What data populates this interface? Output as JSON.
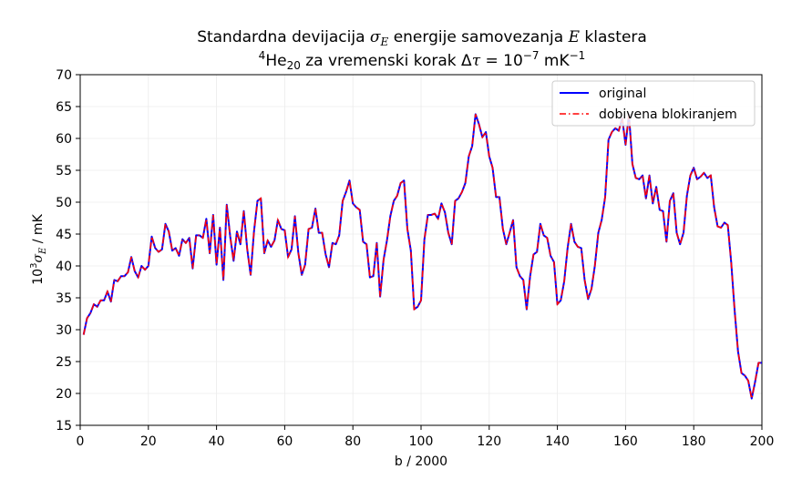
{
  "chart_data": {
    "type": "line",
    "title": {
      "line1": {
        "pre": "Standardna devijacija ",
        "sym": "σ",
        "sub": "E",
        "mid": " energije samovezanja ",
        "sym2": "E",
        "post": " klastera"
      },
      "line2": {
        "sup_pre": "4",
        "base": "He",
        "sub": "20",
        "mid": " za vremenski korak Δ",
        "tau": "τ",
        "eq": " = 10",
        "exp": "−7",
        "unit": " mK",
        "unit_exp": "−1"
      }
    },
    "xlabel": "b / 2000",
    "ylabel": {
      "pre": "10",
      "sup": "3",
      "sym": "σ",
      "sub": "E",
      "post": " / mK"
    },
    "xlim": [
      0,
      200
    ],
    "ylim": [
      15,
      70
    ],
    "xticks": [
      "0",
      "20",
      "40",
      "60",
      "80",
      "100",
      "120",
      "140",
      "160",
      "180",
      "200"
    ],
    "yticks": [
      "15",
      "20",
      "25",
      "30",
      "35",
      "40",
      "45",
      "50",
      "55",
      "60",
      "65",
      "70"
    ],
    "grid": true,
    "legend_position": "top-right",
    "colors": {
      "original": "#0000ff",
      "blocked": "#ff0000"
    },
    "series": [
      {
        "name": "original",
        "style": "solid"
      },
      {
        "name": "dobivena blokiranjem",
        "style": "dashdot"
      }
    ],
    "x": [
      1,
      2,
      3,
      4,
      5,
      6,
      7,
      8,
      9,
      10,
      11,
      12,
      13,
      14,
      15,
      16,
      17,
      18,
      19,
      20,
      21,
      22,
      23,
      24,
      25,
      26,
      27,
      28,
      29,
      30,
      31,
      32,
      33,
      34,
      35,
      36,
      37,
      38,
      39,
      40,
      41,
      42,
      43,
      44,
      45,
      46,
      47,
      48,
      49,
      50,
      51,
      52,
      53,
      54,
      55,
      56,
      57,
      58,
      59,
      60,
      61,
      62,
      63,
      64,
      65,
      66,
      67,
      68,
      69,
      70,
      71,
      72,
      73,
      74,
      75,
      76,
      77,
      78,
      79,
      80,
      81,
      82,
      83,
      84,
      85,
      86,
      87,
      88,
      89,
      90,
      91,
      92,
      93,
      94,
      95,
      96,
      97,
      98,
      99,
      100,
      101,
      102,
      103,
      104,
      105,
      106,
      107,
      108,
      109,
      110,
      111,
      112,
      113,
      114,
      115,
      116,
      117,
      118,
      119,
      120,
      121,
      122,
      123,
      124,
      125,
      126,
      127,
      128,
      129,
      130,
      131,
      132,
      133,
      134,
      135,
      136,
      137,
      138,
      139,
      140,
      141,
      142,
      143,
      144,
      145,
      146,
      147,
      148,
      149,
      150,
      151,
      152,
      153,
      154,
      155,
      156,
      157,
      158,
      159,
      160,
      161,
      162,
      163,
      164,
      165,
      166,
      167,
      168,
      169,
      170,
      171,
      172,
      173,
      174,
      175,
      176,
      177,
      178,
      179,
      180,
      181,
      182,
      183,
      184,
      185,
      186,
      187,
      188,
      189,
      190,
      191,
      192,
      193,
      194,
      195,
      196,
      197,
      198,
      199,
      200
    ],
    "values": [
      29.2,
      31.8,
      32.6,
      34.0,
      33.6,
      34.6,
      34.6,
      36.0,
      34.4,
      37.8,
      37.6,
      38.4,
      38.4,
      39.0,
      41.4,
      39.2,
      38.2,
      40.0,
      39.4,
      40.0,
      44.6,
      42.8,
      42.2,
      42.6,
      46.6,
      45.4,
      42.4,
      42.8,
      41.6,
      44.2,
      43.6,
      44.4,
      39.6,
      44.8,
      44.8,
      44.4,
      47.4,
      42.0,
      48.0,
      40.2,
      46.0,
      37.8,
      49.6,
      44.6,
      40.8,
      45.4,
      43.4,
      48.6,
      42.6,
      38.6,
      45.4,
      50.2,
      50.6,
      42.0,
      44.0,
      43.0,
      44.0,
      47.2,
      45.8,
      45.6,
      41.4,
      42.6,
      47.8,
      42.0,
      38.6,
      40.2,
      45.8,
      46.0,
      49.0,
      45.2,
      45.2,
      41.8,
      39.8,
      43.6,
      43.4,
      44.8,
      50.2,
      51.6,
      53.4,
      49.8,
      49.2,
      48.8,
      43.8,
      43.4,
      38.2,
      38.4,
      43.6,
      35.2,
      41.0,
      44.0,
      47.8,
      50.2,
      51.0,
      53.0,
      53.4,
      45.8,
      42.4,
      33.2,
      33.6,
      34.6,
      44.2,
      48.0,
      48.0,
      48.2,
      47.4,
      49.8,
      48.4,
      45.2,
      43.4,
      50.2,
      50.6,
      51.6,
      53.0,
      57.2,
      58.8,
      63.8,
      62.2,
      60.2,
      61.0,
      57.2,
      55.4,
      50.8,
      50.8,
      45.8,
      43.4,
      45.2,
      47.2,
      39.8,
      38.4,
      37.8,
      33.2,
      38.4,
      41.8,
      42.2,
      46.6,
      44.8,
      44.4,
      41.6,
      40.6,
      34.0,
      34.6,
      37.6,
      42.8,
      46.6,
      43.8,
      43.0,
      42.8,
      37.8,
      34.8,
      36.4,
      40.0,
      45.2,
      47.2,
      50.8,
      59.8,
      61.0,
      61.6,
      61.2,
      63.2,
      59.0,
      63.8,
      56.0,
      53.8,
      53.6,
      54.2,
      50.6,
      54.2,
      49.8,
      52.4,
      48.8,
      48.6,
      43.8,
      50.2,
      51.4,
      45.2,
      43.4,
      45.2,
      51.0,
      54.2,
      55.4,
      53.6,
      54.0,
      54.6,
      53.8,
      54.2,
      49.2,
      46.2,
      46.0,
      46.8,
      46.4,
      40.6,
      33.0,
      26.6,
      23.2,
      22.8,
      22.0,
      19.2,
      21.8,
      24.8,
      24.8
    ]
  }
}
